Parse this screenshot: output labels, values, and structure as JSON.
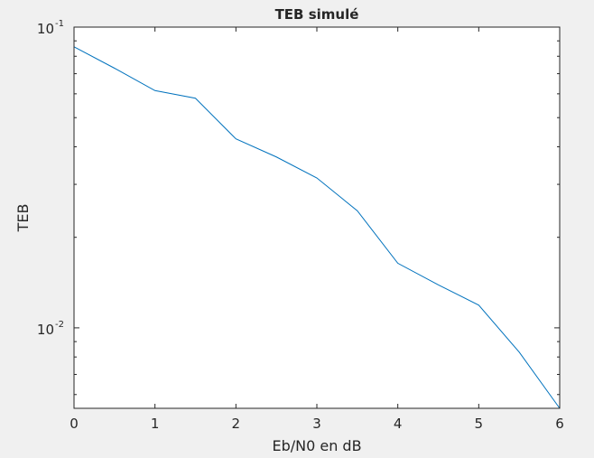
{
  "chart_data": {
    "type": "line",
    "title": "TEB simulé",
    "xlabel": "Eb/N0 en dB",
    "ylabel": "TEB",
    "xlim": [
      0,
      6
    ],
    "ylim": [
      0.0054,
      0.1
    ],
    "yscale": "log",
    "xticks": [
      0,
      1,
      2,
      3,
      4,
      5,
      6
    ],
    "yticks": [
      {
        "value": 0.1,
        "base": "10",
        "exp": "-1"
      },
      {
        "value": 0.01,
        "base": "10",
        "exp": "-2"
      }
    ],
    "grid": false,
    "box": true,
    "series": [
      {
        "color": "#0072bd",
        "x": [
          0,
          0.5,
          1,
          1.5,
          2,
          2.5,
          3,
          3.5,
          4,
          4.5,
          5,
          5.5,
          6
        ],
        "y": [
          0.086,
          0.073,
          0.0615,
          0.058,
          0.0425,
          0.037,
          0.0315,
          0.0245,
          0.0164,
          0.0139,
          0.0119,
          0.0083,
          0.0054
        ]
      }
    ]
  }
}
